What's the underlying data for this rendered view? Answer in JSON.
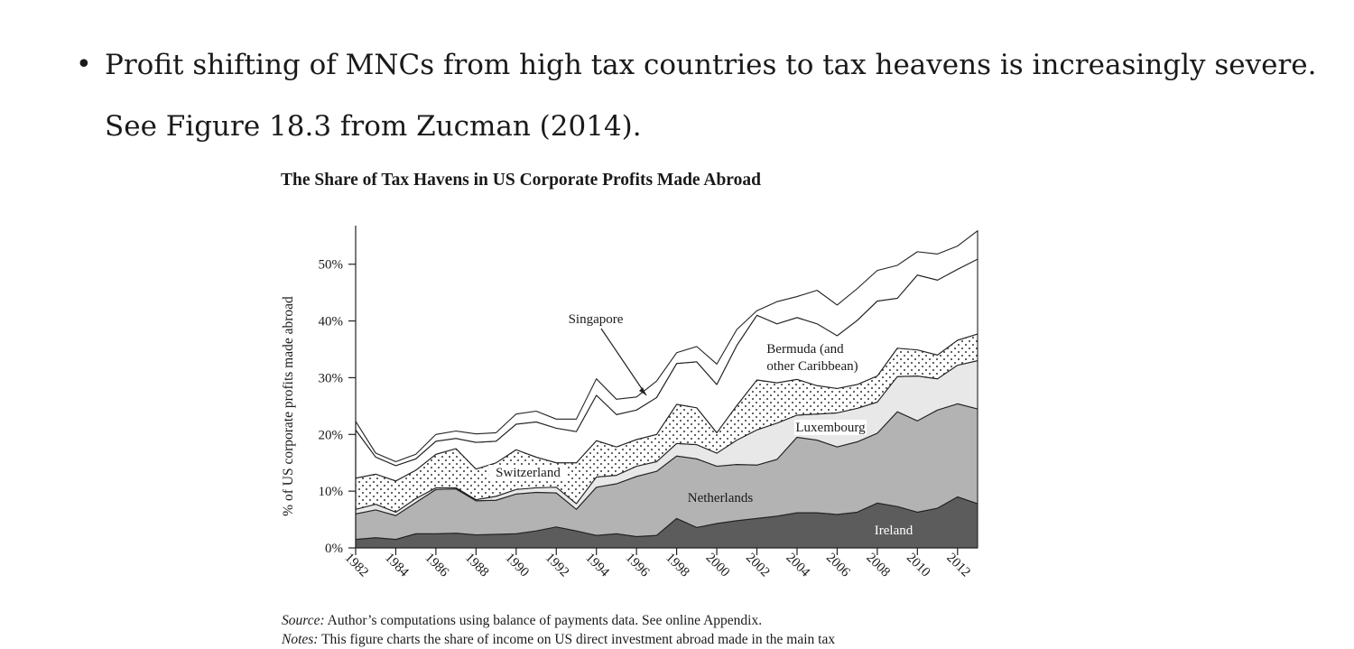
{
  "bullet": {
    "line1": "Profit shifting of MNCs from high tax countries to tax heavens is increasingly severe.",
    "line2": "See Figure 18.3 from Zucman (2014)."
  },
  "figure": {
    "title": "The Share of Tax Havens in US Corporate Profits Made Abroad",
    "source_label": "Source:",
    "source_text": "Author’s computations using balance of payments data. See online Appendix.",
    "notes_label": "Notes:",
    "notes_text": "This figure charts the share of income on US direct investment abroad made in the main tax"
  },
  "chart_data": {
    "type": "area",
    "stacked": true,
    "ylabel": "% of US corporate profits made abroad",
    "ylim": [
      0,
      56
    ],
    "yticks": [
      0,
      10,
      20,
      30,
      40,
      50
    ],
    "ytick_labels": [
      "0%",
      "10%",
      "20%",
      "30%",
      "40%",
      "50%"
    ],
    "xlim": [
      1982,
      2013
    ],
    "xticks": [
      1982,
      1984,
      1986,
      1988,
      1990,
      1992,
      1994,
      1996,
      1998,
      2000,
      2002,
      2004,
      2006,
      2008,
      2010,
      2012
    ],
    "x": [
      1982,
      1983,
      1984,
      1985,
      1986,
      1987,
      1988,
      1989,
      1990,
      1991,
      1992,
      1993,
      1994,
      1995,
      1996,
      1997,
      1998,
      1999,
      2000,
      2001,
      2002,
      2003,
      2004,
      2005,
      2006,
      2007,
      2008,
      2009,
      2010,
      2011,
      2012,
      2013
    ],
    "series": [
      {
        "name": "Ireland",
        "color": "#5c5c5c",
        "values": [
          1.5,
          1.8,
          1.5,
          2.5,
          2.5,
          2.6,
          2.3,
          2.4,
          2.5,
          3,
          3.7,
          3,
          2.2,
          2.5,
          2,
          2.2,
          5.2,
          3.6,
          4.3,
          4.8,
          5.2,
          5.6,
          6.2,
          6.2,
          5.9,
          6.3,
          7.9,
          7.3,
          6.3,
          7,
          9,
          7.8
        ]
      },
      {
        "name": "Netherlands",
        "color": "#b3b3b3",
        "values": [
          4.5,
          4.9,
          4.2,
          5.5,
          7.8,
          7.8,
          6,
          6,
          7,
          6.8,
          6,
          3.8,
          8.5,
          8.8,
          10.6,
          11.3,
          11,
          12.1,
          10.1,
          9.9,
          9.4,
          10,
          13.3,
          12.8,
          11.9,
          12.4,
          12.3,
          16.7,
          16.1,
          17.3,
          16.4,
          16.7
        ]
      },
      {
        "name": "Luxembourg",
        "color": "#e8e8e8",
        "values": [
          0.8,
          1,
          0.6,
          0.7,
          0.3,
          0.2,
          0.2,
          0.7,
          0.8,
          0.8,
          1,
          1,
          1.8,
          1.5,
          1.8,
          1.7,
          2.2,
          2.5,
          2.3,
          4.3,
          6.2,
          6.4,
          3.9,
          4.6,
          6,
          5.9,
          5.5,
          6.2,
          7.9,
          5.5,
          6.8,
          8.5
        ]
      },
      {
        "name": "Switzerland",
        "color": "dots",
        "values": [
          5.5,
          5.3,
          5.5,
          5,
          5.9,
          6.9,
          5.4,
          5.9,
          7,
          5.4,
          4.3,
          7.2,
          6.4,
          5,
          4.7,
          4.8,
          6.9,
          6.5,
          3.6,
          6.1,
          8.8,
          7.1,
          6.3,
          5,
          4.3,
          4.2,
          4.6,
          5,
          4.6,
          4.2,
          4.4,
          4.7
        ]
      },
      {
        "name": "Bermuda (and other Caribbean)",
        "color": "#ffffff",
        "values": [
          8.5,
          3,
          2.7,
          2,
          2.3,
          1.8,
          4.7,
          3.8,
          4.5,
          6.2,
          6.1,
          5.5,
          8,
          5.7,
          5.2,
          6.5,
          7.2,
          8.1,
          8.5,
          10.6,
          11.4,
          10.4,
          10.9,
          10.9,
          9.3,
          11.3,
          13.2,
          8.8,
          13.2,
          13.2,
          12.5,
          13.2
        ]
      },
      {
        "name": "Singapore",
        "color": "#ffffff",
        "values": [
          1.5,
          0.7,
          0.7,
          0.8,
          1.2,
          1.3,
          1.5,
          1.5,
          1.8,
          1.9,
          1.6,
          2.2,
          2.9,
          2.7,
          2.3,
          2.9,
          1.9,
          2.7,
          3.6,
          2.8,
          0.8,
          3.9,
          3.7,
          5.9,
          5.4,
          5.6,
          5.4,
          5.8,
          4.1,
          4.6,
          4.1,
          5
        ]
      }
    ],
    "annotations": [
      "Singapore",
      "Bermuda (and",
      "other Caribbean)",
      "Luxembourg",
      "Switzerland",
      "Netherlands",
      "Ireland"
    ],
    "grid": false
  }
}
